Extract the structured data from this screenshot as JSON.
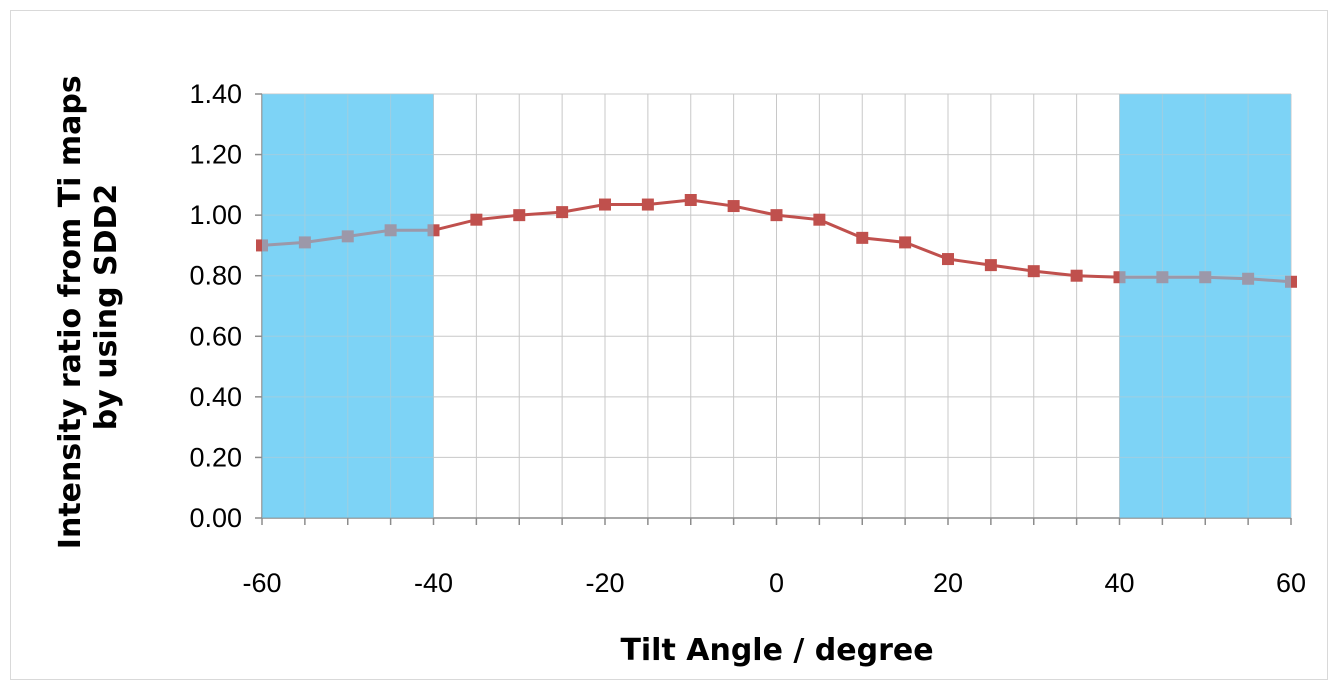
{
  "chart_data": {
    "type": "line",
    "title": "",
    "xlabel": "Tilt Angle / degree",
    "ylabel": [
      "Intensity ratio from Ti maps",
      "by using SDD2"
    ],
    "xlim": [
      -60,
      60
    ],
    "ylim": [
      0,
      1.4
    ],
    "x_ticks": [
      -60,
      -40,
      -20,
      0,
      20,
      40,
      60
    ],
    "x_tick_labels": [
      "-60",
      "-40",
      "-20",
      "0",
      "20",
      "40",
      "60"
    ],
    "y_ticks": [
      0,
      0.2,
      0.4,
      0.6,
      0.8,
      1.0,
      1.2,
      1.4
    ],
    "y_tick_labels": [
      "0.00",
      "0.20",
      "0.40",
      "0.60",
      "0.80",
      "1.00",
      "1.20",
      "1.40"
    ],
    "grid": true,
    "legend": "none",
    "shaded_regions": [
      {
        "x_start": -60,
        "x_end": -40,
        "color": "#7dd3f5"
      },
      {
        "x_start": 40,
        "x_end": 60,
        "color": "#7dd3f5"
      }
    ],
    "series": [
      {
        "color": "#c0504d",
        "marker": "square",
        "x": [
          -60,
          -55,
          -50,
          -45,
          -40,
          -35,
          -30,
          -25,
          -20,
          -15,
          -10,
          -5,
          0,
          5,
          10,
          15,
          20,
          25,
          30,
          35,
          40,
          45,
          50,
          55,
          60
        ],
        "y": [
          0.9,
          0.91,
          0.93,
          0.95,
          0.95,
          0.985,
          1.0,
          1.01,
          1.035,
          1.035,
          1.05,
          1.03,
          1.0,
          0.985,
          0.925,
          0.91,
          0.855,
          0.835,
          0.815,
          0.8,
          0.795,
          0.795,
          0.795,
          0.79,
          0.78
        ]
      }
    ]
  }
}
